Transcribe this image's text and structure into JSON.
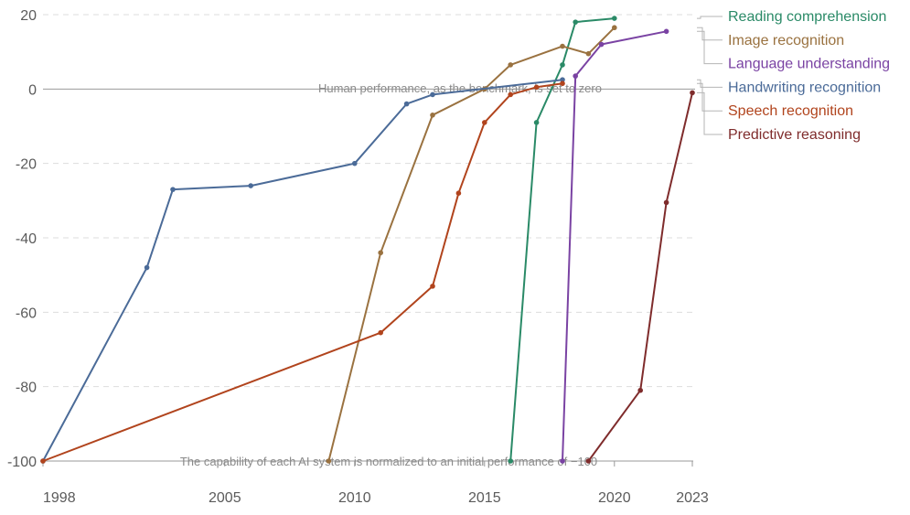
{
  "chart_data": {
    "type": "line",
    "xlim": [
      1998,
      2023
    ],
    "ylim": [
      -100,
      20
    ],
    "x_ticks": [
      {
        "value": 1998,
        "label": "1998"
      },
      {
        "value": 2005,
        "label": "2005"
      },
      {
        "value": 2010,
        "label": "2010"
      },
      {
        "value": 2015,
        "label": "2015"
      },
      {
        "value": 2020,
        "label": "2020"
      },
      {
        "value": 2023,
        "label": "2023"
      }
    ],
    "y_ticks": [
      {
        "value": 20,
        "label": "20"
      },
      {
        "value": 0,
        "label": "0"
      },
      {
        "value": -20,
        "label": "-20"
      },
      {
        "value": -40,
        "label": "-40"
      },
      {
        "value": -60,
        "label": "-60"
      },
      {
        "value": -80,
        "label": "-80"
      },
      {
        "value": -100,
        "label": "-100"
      }
    ],
    "grid": true,
    "legend_position": "right",
    "annotations": {
      "human_baseline": "Human performance, as the benchmark, is set to zero",
      "initial_baseline": "The capability of each AI system is normalized to an initial performance of −100"
    },
    "series": [
      {
        "name": "Reading comprehension",
        "color": "#2a8a67",
        "points": [
          [
            2016,
            -100
          ],
          [
            2017,
            -9
          ],
          [
            2018,
            6.5
          ],
          [
            2018.5,
            18
          ],
          [
            2020,
            19
          ]
        ]
      },
      {
        "name": "Image recognition",
        "color": "#9a7240",
        "points": [
          [
            2009,
            -100
          ],
          [
            2011,
            -44
          ],
          [
            2013,
            -7
          ],
          [
            2015,
            0
          ],
          [
            2016,
            6.5
          ],
          [
            2018,
            11.5
          ],
          [
            2019,
            9.5
          ],
          [
            2020,
            16.5
          ]
        ]
      },
      {
        "name": "Language understanding",
        "color": "#7a43a3",
        "points": [
          [
            2018,
            -100
          ],
          [
            2018.5,
            3.5
          ],
          [
            2019.5,
            12
          ],
          [
            2022,
            15.5
          ]
        ]
      },
      {
        "name": "Handwriting recognition",
        "color": "#4b6b98",
        "points": [
          [
            1998,
            -100
          ],
          [
            2002,
            -48
          ],
          [
            2003,
            -27
          ],
          [
            2006,
            -26
          ],
          [
            2010,
            -20
          ],
          [
            2012,
            -4
          ],
          [
            2013,
            -1.5
          ],
          [
            2018,
            2.5
          ]
        ]
      },
      {
        "name": "Speech recognition",
        "color": "#b1441d",
        "points": [
          [
            1998,
            -100
          ],
          [
            2011,
            -65.5
          ],
          [
            2013,
            -53
          ],
          [
            2014,
            -28
          ],
          [
            2015,
            -9
          ],
          [
            2016,
            -1.5
          ],
          [
            2017,
            0.5
          ],
          [
            2018,
            1.5
          ]
        ]
      },
      {
        "name": "Predictive reasoning",
        "color": "#7f2c2c",
        "points": [
          [
            2019,
            -100
          ],
          [
            2021,
            -81
          ],
          [
            2022,
            -30.5
          ],
          [
            2023,
            -1
          ]
        ]
      }
    ]
  }
}
